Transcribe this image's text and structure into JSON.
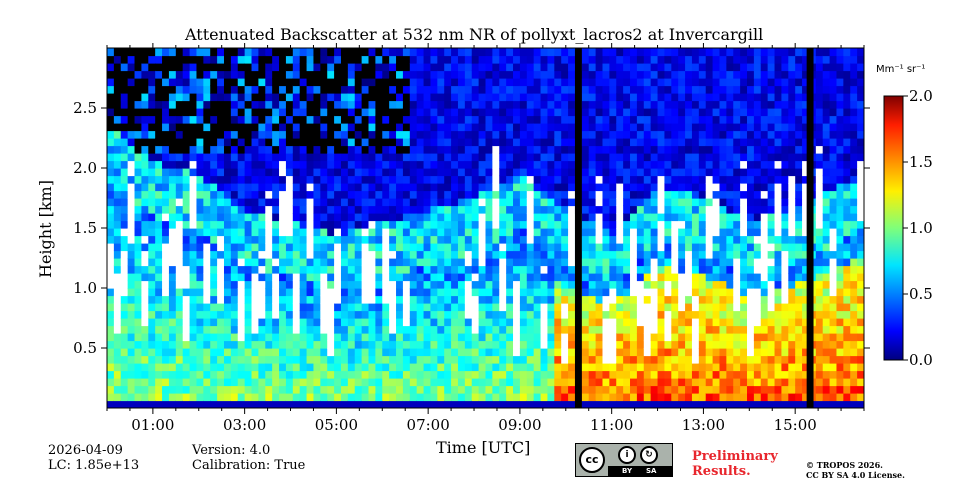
{
  "chart_data": {
    "type": "heatmap",
    "title": "Attenuated Backscatter at 532 nm NR of pollyxt_lacros2 at Invercargill",
    "xlabel": "Time [UTC]",
    "ylabel": "Height [km]",
    "xlim_hours": [
      0.0,
      16.5
    ],
    "ylim_km": [
      0.0,
      3.0
    ],
    "x_ticks": [
      {
        "value": 1.0,
        "label": "01:00"
      },
      {
        "value": 3.0,
        "label": "03:00"
      },
      {
        "value": 5.0,
        "label": "05:00"
      },
      {
        "value": 7.0,
        "label": "07:00"
      },
      {
        "value": 9.0,
        "label": "09:00"
      },
      {
        "value": 11.0,
        "label": "11:00"
      },
      {
        "value": 13.0,
        "label": "13:00"
      },
      {
        "value": 15.0,
        "label": "15:00"
      }
    ],
    "y_ticks": [
      {
        "value": 0.5,
        "label": "0.5"
      },
      {
        "value": 1.0,
        "label": "1.0"
      },
      {
        "value": 1.5,
        "label": "1.5"
      },
      {
        "value": 2.0,
        "label": "2.0"
      },
      {
        "value": 2.5,
        "label": "2.5"
      }
    ],
    "colorbar": {
      "unit_label": "Mm⁻¹ sr⁻¹",
      "range": [
        0.0,
        2.0
      ],
      "ticks": [
        {
          "value": 0.0,
          "label": "0.0"
        },
        {
          "value": 0.5,
          "label": "0.5"
        },
        {
          "value": 1.0,
          "label": "1.0"
        },
        {
          "value": 1.5,
          "label": "1.5"
        },
        {
          "value": 2.0,
          "label": "2.0"
        }
      ],
      "colormap": "jet"
    },
    "no_data_periods_hours": [
      [
        10.2,
        10.35
      ],
      [
        15.25,
        15.4
      ]
    ],
    "aerosol_layer_top_km_by_hour": [
      [
        0.0,
        1.9
      ],
      [
        1.0,
        1.6
      ],
      [
        2.0,
        1.5
      ],
      [
        3.0,
        1.2
      ],
      [
        4.0,
        1.1
      ],
      [
        5.0,
        1.0
      ],
      [
        6.0,
        1.1
      ],
      [
        7.0,
        1.2
      ],
      [
        8.0,
        1.3
      ],
      [
        9.0,
        1.5
      ],
      [
        10.0,
        1.2
      ],
      [
        11.0,
        1.0
      ],
      [
        12.0,
        1.4
      ],
      [
        13.0,
        1.3
      ],
      [
        14.0,
        1.1
      ],
      [
        15.0,
        1.2
      ],
      [
        16.0,
        1.4
      ],
      [
        16.5,
        1.5
      ]
    ]
  },
  "footer": {
    "date": "2026-04-09",
    "lc": "LC: 1.85e+13",
    "version": "Version: 4.0",
    "calibration": "Calibration: True",
    "preliminary_line1": "Preliminary",
    "preliminary_line2": "Results.",
    "copyright_line1": "© TROPOS 2026.",
    "copyright_line2": "CC BY SA 4.0 License."
  },
  "license_badge": {
    "cc": "cc",
    "by": "BY",
    "sa": "SA"
  }
}
